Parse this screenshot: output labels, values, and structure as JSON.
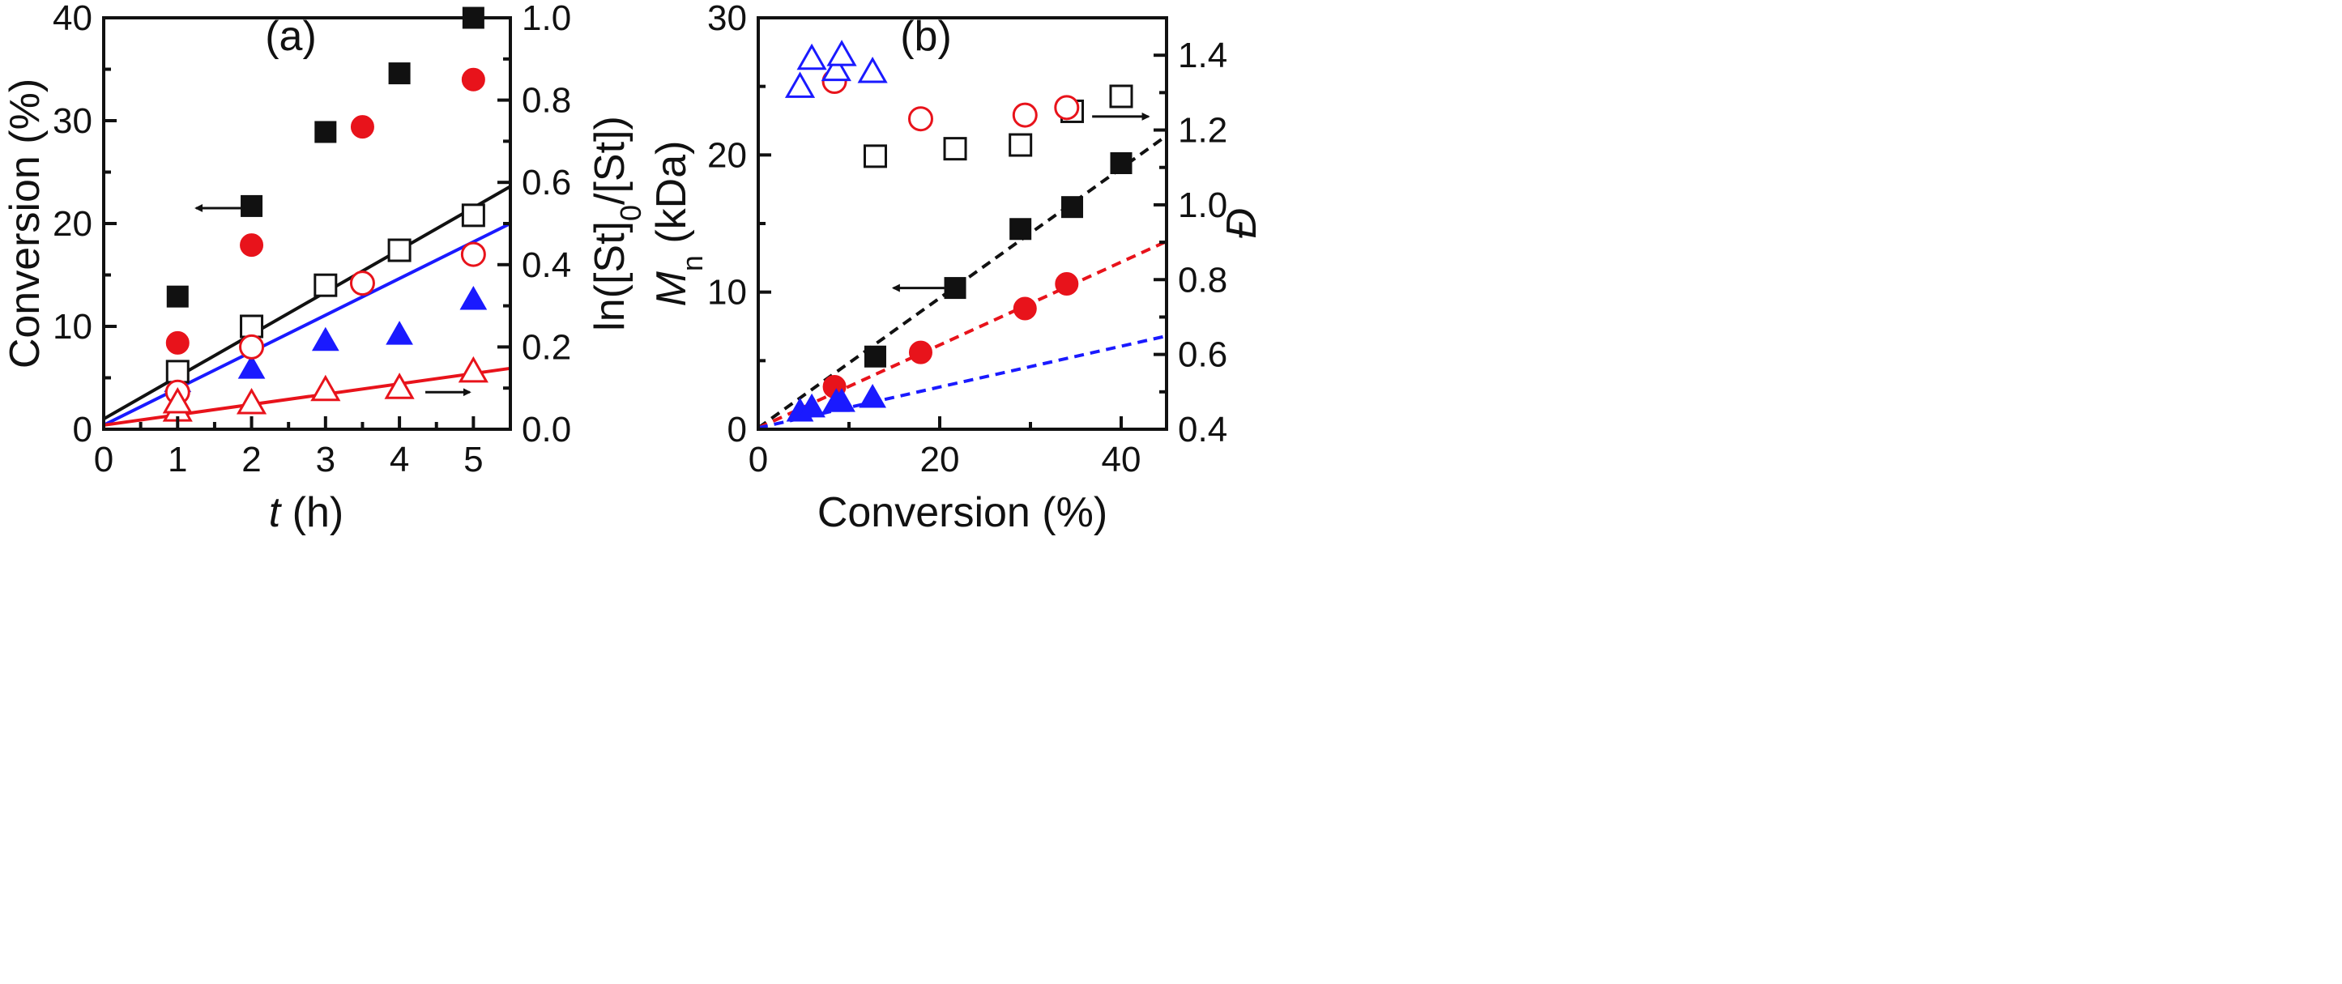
{
  "chart_data": [
    {
      "panel": "(a)",
      "type": "scatter",
      "xlabel": "t (h)",
      "xlabel_italic": "t",
      "xlabel_rest": " (h)",
      "ylabel_left": "Conversion (%)",
      "ylabel_right": "ln([St]0/[St])",
      "ylabel_right_parts": [
        "ln([St]",
        "0",
        "/[St])"
      ],
      "xlim": [
        0,
        5.5
      ],
      "ylim_left": [
        0,
        40
      ],
      "ylim_right": [
        0,
        1.0
      ],
      "xticks": [
        "0",
        "1",
        "2",
        "3",
        "4",
        "5"
      ],
      "yticks_left": [
        "0",
        "10",
        "20",
        "30",
        "40"
      ],
      "yticks_right": [
        "0.0",
        "0.2",
        "0.4",
        "0.6",
        "0.8",
        "1.0"
      ],
      "series": [
        {
          "name": "black conversion",
          "marker": "square-filled",
          "color": "#111111",
          "axis": "left",
          "x": [
            1,
            2,
            3,
            4,
            5
          ],
          "y": [
            12.9,
            21.7,
            28.9,
            34.6,
            40.0
          ]
        },
        {
          "name": "red conversion",
          "marker": "circle-filled",
          "color": "#e8131b",
          "axis": "left",
          "x": [
            1,
            2,
            3.5,
            5
          ],
          "y": [
            8.4,
            17.9,
            29.4,
            34.0
          ]
        },
        {
          "name": "blue conversion",
          "marker": "triangle-filled",
          "color": "#1a1aff",
          "axis": "left",
          "x": [
            1,
            2,
            3,
            4,
            5
          ],
          "y": [
            4.6,
            5.9,
            8.6,
            9.2,
            12.6
          ]
        },
        {
          "name": "black ln",
          "marker": "square-open",
          "color": "#111111",
          "axis": "right",
          "x": [
            1,
            2,
            3,
            4,
            5
          ],
          "y": [
            0.14,
            0.25,
            0.35,
            0.435,
            0.52
          ]
        },
        {
          "name": "red ln",
          "marker": "circle-open",
          "color": "#e8131b",
          "axis": "right",
          "x": [
            1,
            2,
            3.5,
            5
          ],
          "y": [
            0.09,
            0.2,
            0.355,
            0.425
          ]
        },
        {
          "name": "red-open-triangle ln",
          "marker": "triangle-open",
          "color": "#e8131b",
          "axis": "right",
          "x": [
            1,
            1,
            2,
            3,
            4,
            5
          ],
          "y": [
            0.045,
            0.065,
            0.063,
            0.095,
            0.1,
            0.14
          ]
        }
      ],
      "fit_lines": [
        {
          "color": "#111111",
          "axis": "right",
          "x": [
            0,
            5.5
          ],
          "y": [
            0.025,
            0.59
          ]
        },
        {
          "color": "#1a1aff",
          "axis": "right",
          "x": [
            0,
            5.5
          ],
          "y": [
            0.01,
            0.5
          ]
        },
        {
          "color": "#e8131b",
          "axis": "right",
          "x": [
            0,
            5.5
          ],
          "y": [
            0.01,
            0.148
          ]
        }
      ],
      "arrows": [
        {
          "direction": "left",
          "axis": "left",
          "x_from": 1.9,
          "x_to": 1.25,
          "y": 21.5
        },
        {
          "direction": "right",
          "axis": "left",
          "x_from": 4.35,
          "x_to": 4.95,
          "y": 3.6
        }
      ]
    },
    {
      "panel": "(b)",
      "type": "scatter",
      "xlabel": "Conversion (%)",
      "ylabel_left": "Mn (kDa)",
      "ylabel_left_parts": [
        "M",
        "n",
        " (kDa)"
      ],
      "ylabel_right": "Đ",
      "xlim": [
        0,
        45
      ],
      "ylim_left": [
        0,
        30
      ],
      "ylim_right": [
        0.4,
        1.5
      ],
      "xticks": [
        "0",
        "20",
        "40"
      ],
      "xtick_values": [
        0,
        20,
        40
      ],
      "yticks_left": [
        "0",
        "10",
        "20",
        "30"
      ],
      "ytick_left_values": [
        0,
        10,
        20,
        30
      ],
      "yticks_right": [
        "0.4",
        "0.6",
        "0.8",
        "1.0",
        "1.2",
        "1.4"
      ],
      "ytick_right_values": [
        0.4,
        0.6,
        0.8,
        1.0,
        1.2,
        1.4
      ],
      "series": [
        {
          "name": "black Mn",
          "marker": "square-filled",
          "color": "#111111",
          "axis": "left",
          "x": [
            12.9,
            21.7,
            28.9,
            34.6,
            40.0
          ],
          "y": [
            5.3,
            10.3,
            14.6,
            16.2,
            19.4
          ]
        },
        {
          "name": "red Mn",
          "marker": "circle-filled",
          "color": "#e8131b",
          "axis": "left",
          "x": [
            8.4,
            17.9,
            29.4,
            34.0
          ],
          "y": [
            3.1,
            5.6,
            8.8,
            10.6
          ]
        },
        {
          "name": "blue Mn",
          "marker": "triangle-filled",
          "color": "#1a1aff",
          "axis": "left",
          "x": [
            4.6,
            5.9,
            8.6,
            9.2,
            12.6
          ],
          "y": [
            1.3,
            1.6,
            2.0,
            2.0,
            2.3
          ]
        },
        {
          "name": "black D",
          "marker": "square-open",
          "color": "#111111",
          "axis": "right",
          "x": [
            12.9,
            21.7,
            28.9,
            34.6,
            40.0
          ],
          "y": [
            1.13,
            1.15,
            1.16,
            1.25,
            1.29
          ]
        },
        {
          "name": "red D",
          "marker": "circle-open",
          "color": "#e8131b",
          "axis": "right",
          "x": [
            8.4,
            17.9,
            29.4,
            34.0
          ],
          "y": [
            1.33,
            1.23,
            1.24,
            1.26
          ]
        },
        {
          "name": "blue D",
          "marker": "triangle-open",
          "color": "#1a1aff",
          "axis": "right",
          "x": [
            4.6,
            5.9,
            8.6,
            9.2,
            12.6
          ],
          "y": [
            1.315,
            1.39,
            1.36,
            1.4,
            1.355
          ]
        }
      ],
      "fit_lines": [
        {
          "color": "#111111",
          "axis": "left",
          "dashed": true,
          "x": [
            0,
            45
          ],
          "y": [
            0.1,
            21.4
          ]
        },
        {
          "color": "#e8131b",
          "axis": "left",
          "dashed": true,
          "x": [
            0,
            45
          ],
          "y": [
            0.1,
            13.7
          ]
        },
        {
          "color": "#1a1aff",
          "axis": "left",
          "dashed": true,
          "x": [
            0,
            45
          ],
          "y": [
            0.1,
            6.8
          ]
        }
      ],
      "arrows": [
        {
          "direction": "left",
          "axis": "left",
          "x_from": 20.5,
          "x_to": 14.9,
          "y": 10.3
        },
        {
          "direction": "right",
          "axis": "left",
          "x_from": 36.8,
          "x_to": 43.0,
          "y": 22.8
        }
      ]
    }
  ]
}
